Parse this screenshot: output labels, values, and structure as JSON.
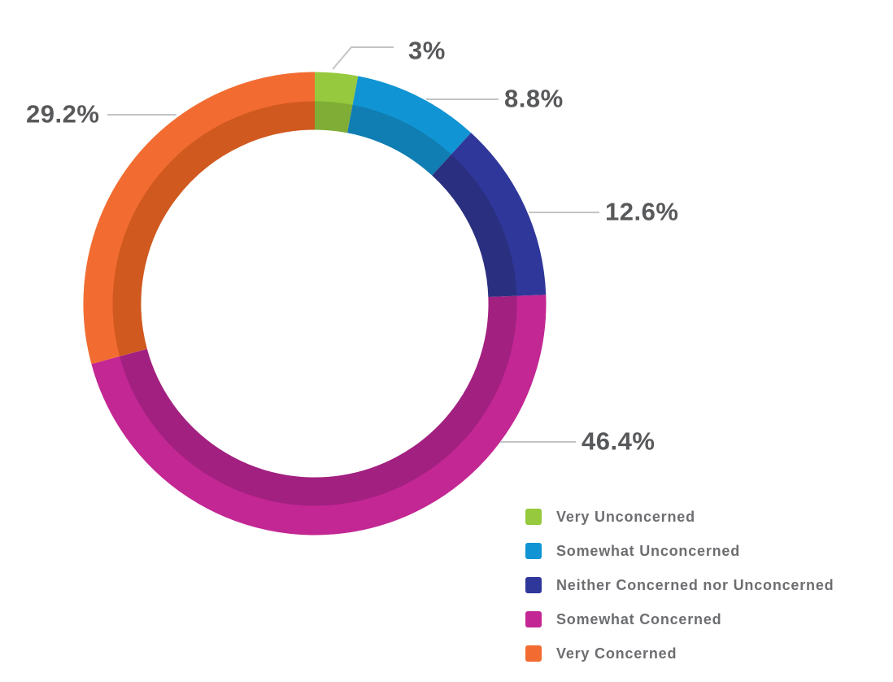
{
  "chart_data": {
    "type": "pie",
    "subtype": "donut",
    "title": "",
    "direction": "clockwise",
    "start_angle_deg": 0,
    "legend_position": "bottom-right",
    "total": 100,
    "slices": [
      {
        "label": "Very Unconcerned",
        "value": 3,
        "pct_label": "3%",
        "color": "#96C93D",
        "inner_color": "#7FAD36"
      },
      {
        "label": "Somewhat Unconcerned",
        "value": 8.8,
        "pct_label": "8.8%",
        "color": "#1194D3",
        "inner_color": "#107EB2"
      },
      {
        "label": "Neither Concerned nor Unconcerned",
        "value": 12.6,
        "pct_label": "12.6%",
        "color": "#2F379A",
        "inner_color": "#2A307F"
      },
      {
        "label": "Somewhat Concerned",
        "value": 46.4,
        "pct_label": "46.4%",
        "color": "#C32793",
        "inner_color": "#A22080"
      },
      {
        "label": "Very Concerned",
        "value": 29.2,
        "pct_label": "29.2%",
        "color": "#F26C31",
        "inner_color": "#D0591F"
      }
    ]
  },
  "styles": {
    "background": "#FFFFFF",
    "percent_label_color": "#58595B",
    "legend_text_color": "#6D6E71",
    "leader_line_color": "#C2C4C6"
  }
}
